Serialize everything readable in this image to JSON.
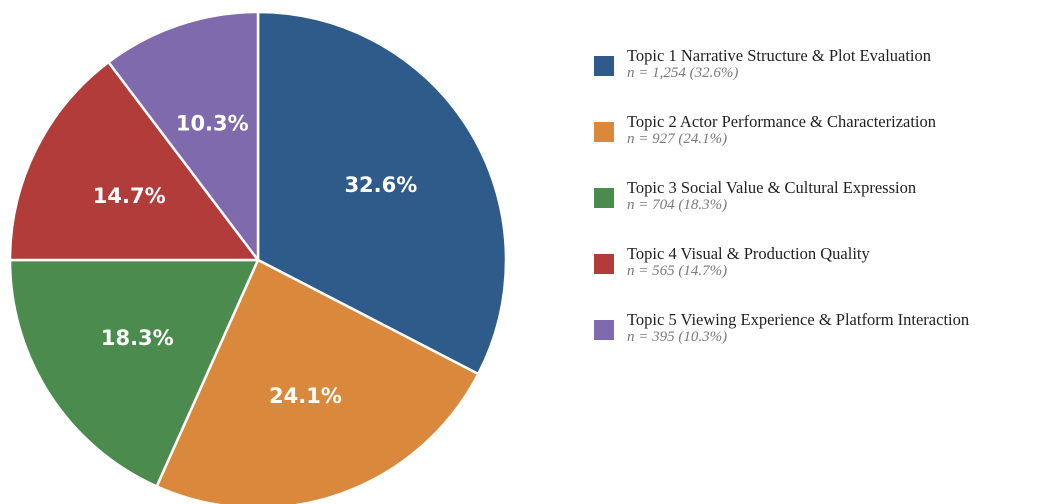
{
  "chart_data": {
    "type": "pie",
    "categories": [
      "Topic 1 Narrative Structure & Plot Evaluation",
      "Topic 2 Actor Performance & Characterization",
      "Topic 3 Social Value & Cultural Expression",
      "Topic 4 Visual & Production Quality",
      "Topic 5 Viewing Experience & Platform Interaction"
    ],
    "values": [
      32.6,
      24.1,
      18.3,
      14.7,
      10.3
    ],
    "slice_labels": [
      "32.6%",
      "24.1%",
      "18.3%",
      "14.7%",
      "10.3%"
    ],
    "colors": [
      "#2e5b8a",
      "#d9883c",
      "#4b8b4e",
      "#b23c3a",
      "#7f6aad"
    ],
    "legend_position": "right",
    "legend": [
      {
        "label": "Topic 1 Narrative Structure & Plot Evaluation",
        "detail": "n = 1,254 (32.6%)",
        "color": "#2e5b8a"
      },
      {
        "label": "Topic 2 Actor Performance & Characterization",
        "detail": "n = 927 (24.1%)",
        "color": "#d9883c"
      },
      {
        "label": "Topic 3 Social Value & Cultural Expression",
        "detail": "n = 704 (18.3%)",
        "color": "#4b8b4e"
      },
      {
        "label": "Topic 4 Visual & Production Quality",
        "detail": "n = 565 (14.7%)",
        "color": "#b23c3a"
      },
      {
        "label": "Topic 5 Viewing Experience & Platform Interaction",
        "detail": "n = 395 (10.3%)",
        "color": "#7f6aad"
      }
    ]
  }
}
